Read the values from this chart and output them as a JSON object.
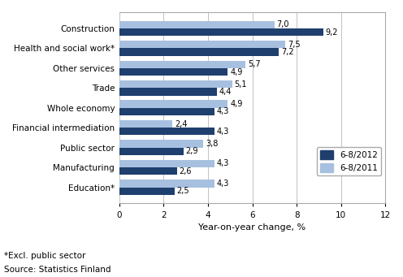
{
  "categories": [
    "Construction",
    "Health and social work*",
    "Other services",
    "Trade",
    "Whole economy",
    "Financial intermediation",
    "Public sector",
    "Manufacturing",
    "Education*"
  ],
  "values_2012": [
    9.2,
    7.2,
    4.9,
    4.4,
    4.3,
    4.3,
    2.9,
    2.6,
    2.5
  ],
  "values_2011": [
    7.0,
    7.5,
    5.7,
    5.1,
    4.9,
    2.4,
    3.8,
    4.3,
    4.3
  ],
  "color_2012": "#1F3F6E",
  "color_2011": "#A8C0E0",
  "xlim": [
    0,
    12
  ],
  "xticks": [
    0,
    2,
    4,
    6,
    8,
    10,
    12
  ],
  "xlabel": "Year-on-year change, %",
  "legend_2012": "6-8/2012",
  "legend_2011": "6-8/2011",
  "footnote1": "*Excl. public sector",
  "footnote2": "Source: Statistics Finland",
  "bar_height": 0.38,
  "label_fontsize": 7,
  "tick_fontsize": 7.5,
  "xlabel_fontsize": 8
}
